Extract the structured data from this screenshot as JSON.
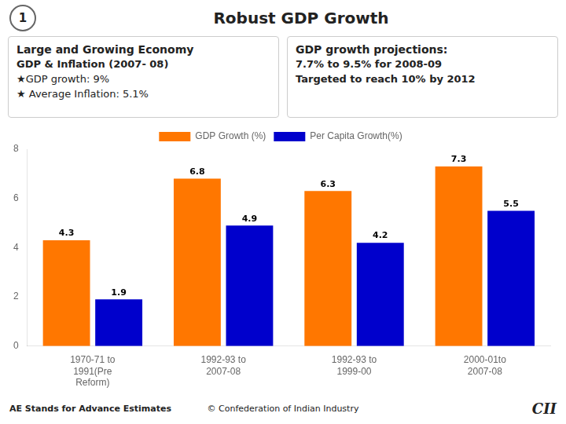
{
  "chart_data": {
    "type": "bar",
    "title": "Robust GDP Growth",
    "annotations": [
      "1",
      "Large and Growing Economy",
      "GDP & Inflation (2007- 08)",
      "★GDP growth: 9%",
      "★ Average Inflation: 5.1%",
      "GDP growth projections:",
      "7.7% to 9.5% for 2008-09",
      "Targeted to reach 10% by 2012",
      "AE Stands for Advance Estimates",
      "© Confederation of Indian Industry",
      "CII"
    ],
    "categories": [
      "1970-71 to\n1991(Pre\nReform)",
      "1992-93 to\n2007-08",
      "1992-93 to\n1999-00",
      "2000-01to\n2007-08"
    ],
    "series": [
      {
        "name": "GDP Growth (%)",
        "color": "#ff7700",
        "values": [
          4.3,
          6.8,
          6.3,
          7.3
        ]
      },
      {
        "name": "Per Capita Growth(%)",
        "color": "#0000cc",
        "values": [
          1.9,
          4.9,
          4.2,
          5.5
        ]
      }
    ],
    "ylim": [
      0,
      8
    ],
    "yticks": [
      0,
      2,
      4,
      6,
      8
    ],
    "grid": false,
    "legend": "top",
    "data_labels": true
  }
}
